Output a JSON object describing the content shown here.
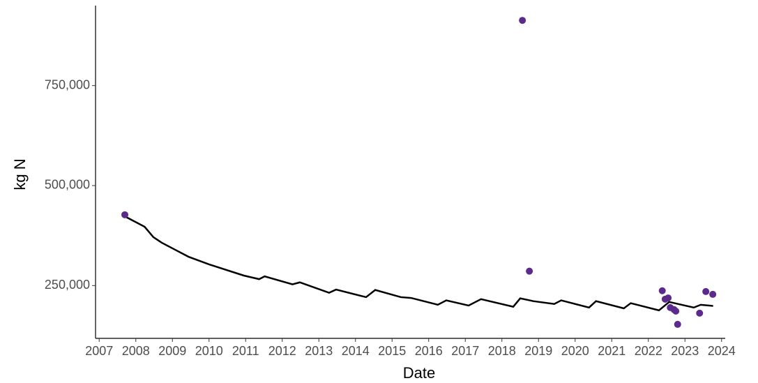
{
  "chart_data": {
    "type": "scatter",
    "x_label": "Date",
    "y_label": "kg N",
    "xlim": [
      2006.9,
      2024.1
    ],
    "xticks": [
      2007,
      2008,
      2009,
      2010,
      2011,
      2012,
      2013,
      2014,
      2015,
      2016,
      2017,
      2018,
      2019,
      2020,
      2021,
      2022,
      2023,
      2024
    ],
    "ylim": [
      118000,
      950000
    ],
    "yticks": [
      {
        "value": 250000,
        "label": "250,000"
      },
      {
        "value": 500000,
        "label": "500,000"
      },
      {
        "value": 750000,
        "label": "750,000"
      }
    ],
    "grid": false,
    "series": [
      {
        "type": "line",
        "color": "#000000",
        "x": [
          2007.7,
          2008.24,
          2008.48,
          2008.71,
          2009.44,
          2010.0,
          2010.95,
          2011.37,
          2011.52,
          2012.28,
          2012.48,
          2013.28,
          2013.47,
          2014.29,
          2014.54,
          2015.24,
          2015.52,
          2016.25,
          2016.48,
          2017.09,
          2017.43,
          2018.31,
          2018.5,
          2018.86,
          2019.43,
          2019.62,
          2020.38,
          2020.57,
          2021.33,
          2021.52,
          2022.29,
          2022.57,
          2023.24,
          2023.43,
          2023.77
        ],
        "values": [
          423000,
          397000,
          371000,
          357000,
          322000,
          303000,
          275000,
          266000,
          273000,
          253000,
          258000,
          232000,
          240000,
          221000,
          239000,
          221000,
          219000,
          202000,
          213000,
          200000,
          216000,
          197000,
          218000,
          211000,
          204000,
          213000,
          195000,
          211000,
          193000,
          206000,
          188000,
          209000,
          195000,
          202000,
          199000
        ]
      },
      {
        "type": "scatter",
        "color": "#5b2a8c",
        "x": [
          2007.7,
          2018.56,
          2018.75,
          2022.38,
          2022.46,
          2022.54,
          2022.6,
          2022.7,
          2022.75,
          2022.8,
          2023.4,
          2023.57,
          2023.76
        ],
        "values": [
          427000,
          913000,
          286000,
          237000,
          216000,
          219000,
          195000,
          190000,
          186000,
          153000,
          181000,
          235000,
          228000
        ]
      }
    ]
  }
}
